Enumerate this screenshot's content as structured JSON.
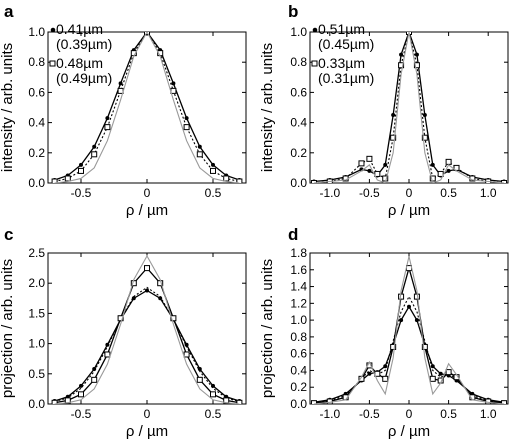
{
  "chart_data": [
    {
      "panel_label": "a",
      "type": "line",
      "xlabel": "ρ / µm",
      "ylabel": "intensity / arb. units",
      "xlim": [
        -0.75,
        0.75
      ],
      "ylim": [
        0.0,
        1.0
      ],
      "xticks": [
        -0.5,
        0,
        0.5
      ],
      "xtick_labels": [
        "-0.5",
        "0",
        "0.5"
      ],
      "yticks": [
        0.0,
        0.2,
        0.4,
        0.6,
        0.8,
        1.0
      ],
      "ytick_labels": [
        "0.0",
        "0.2",
        "0.4",
        "0.6",
        "0.8",
        "1.0"
      ],
      "legend": [
        {
          "marker": "filled-dot",
          "lines": [
            "0.41µm",
            "(0.39µm)"
          ]
        },
        {
          "marker": "open-square",
          "lines": [
            "0.48µm",
            "(0.49µm)"
          ]
        }
      ],
      "series": [
        {
          "marker": "filled-dot",
          "style": "black-solid",
          "x": [
            -0.7,
            -0.6,
            -0.5,
            -0.4,
            -0.3,
            -0.2,
            -0.1,
            0.0,
            0.1,
            0.2,
            0.3,
            0.4,
            0.5,
            0.6,
            0.7
          ],
          "y": [
            0.02,
            0.05,
            0.12,
            0.24,
            0.43,
            0.66,
            0.88,
            1.0,
            0.88,
            0.66,
            0.43,
            0.24,
            0.12,
            0.05,
            0.02
          ]
        },
        {
          "marker": "open-square",
          "style": "black-dotted",
          "x": [
            -0.7,
            -0.6,
            -0.5,
            -0.4,
            -0.3,
            -0.2,
            -0.1,
            0.0,
            0.1,
            0.2,
            0.3,
            0.4,
            0.5,
            0.6,
            0.7
          ],
          "y": [
            0.01,
            0.03,
            0.08,
            0.19,
            0.37,
            0.61,
            0.86,
            1.0,
            0.86,
            0.61,
            0.37,
            0.19,
            0.08,
            0.03,
            0.01
          ]
        },
        {
          "marker": "none",
          "style": "gray-solid",
          "x": [
            -0.7,
            -0.6,
            -0.5,
            -0.4,
            -0.3,
            -0.2,
            -0.1,
            0.0,
            0.1,
            0.2,
            0.3,
            0.4,
            0.5,
            0.6,
            0.7
          ],
          "y": [
            0.0,
            0.01,
            0.03,
            0.1,
            0.28,
            0.55,
            0.84,
            1.0,
            0.84,
            0.55,
            0.28,
            0.1,
            0.03,
            0.01,
            0.0
          ]
        }
      ]
    },
    {
      "panel_label": "b",
      "type": "line",
      "xlabel": "ρ / µm",
      "ylabel": "intensity / arb. units",
      "xlim": [
        -1.25,
        1.25
      ],
      "ylim": [
        0.0,
        1.0
      ],
      "xticks": [
        -1.0,
        -0.5,
        0,
        0.5,
        1.0
      ],
      "xtick_labels": [
        "-1.0",
        "-0.5",
        "0",
        "0.5",
        "1.0"
      ],
      "yticks": [
        0.0,
        0.2,
        0.4,
        0.6,
        0.8,
        1.0
      ],
      "ytick_labels": [
        "0.0",
        "0.2",
        "0.4",
        "0.6",
        "0.8",
        "1.0"
      ],
      "legend": [
        {
          "marker": "filled-dot",
          "lines": [
            "0.51µm",
            "(0.45µm)"
          ]
        },
        {
          "marker": "open-square",
          "lines": [
            "0.33µm",
            "(0.31µm)"
          ]
        }
      ],
      "series": [
        {
          "marker": "filled-dot",
          "style": "black-solid",
          "x": [
            -1.2,
            -1.0,
            -0.8,
            -0.6,
            -0.5,
            -0.4,
            -0.3,
            -0.2,
            -0.1,
            0.0,
            0.1,
            0.2,
            0.3,
            0.4,
            0.5,
            0.6,
            0.8,
            1.0,
            1.2
          ],
          "y": [
            0.01,
            0.02,
            0.04,
            0.09,
            0.08,
            0.05,
            0.12,
            0.45,
            0.85,
            1.0,
            0.85,
            0.45,
            0.12,
            0.05,
            0.08,
            0.09,
            0.04,
            0.02,
            0.01
          ]
        },
        {
          "marker": "open-square",
          "style": "black-dotted",
          "x": [
            -1.2,
            -1.0,
            -0.8,
            -0.6,
            -0.5,
            -0.4,
            -0.3,
            -0.2,
            -0.1,
            0.0,
            0.1,
            0.2,
            0.3,
            0.4,
            0.5,
            0.6,
            0.8,
            1.0,
            1.2
          ],
          "y": [
            0.0,
            0.01,
            0.03,
            0.13,
            0.16,
            0.06,
            0.03,
            0.3,
            0.78,
            1.0,
            0.78,
            0.3,
            0.03,
            0.06,
            0.14,
            0.1,
            0.03,
            0.01,
            0.0
          ]
        },
        {
          "marker": "none",
          "style": "gray-solid",
          "x": [
            -1.2,
            -1.0,
            -0.8,
            -0.6,
            -0.5,
            -0.4,
            -0.3,
            -0.2,
            -0.1,
            0.0,
            0.1,
            0.2,
            0.3,
            0.4,
            0.5,
            0.6,
            0.8,
            1.0,
            1.2
          ],
          "y": [
            0.0,
            0.01,
            0.02,
            0.08,
            0.12,
            0.02,
            0.0,
            0.2,
            0.72,
            1.0,
            0.72,
            0.2,
            0.0,
            0.02,
            0.12,
            0.08,
            0.02,
            0.01,
            0.0
          ]
        }
      ]
    },
    {
      "panel_label": "c",
      "type": "line",
      "xlabel": "ρ / µm",
      "ylabel": "projection / arb. units",
      "xlim": [
        -0.75,
        0.75
      ],
      "ylim": [
        0.0,
        2.5
      ],
      "xticks": [
        -0.5,
        0,
        0.5
      ],
      "xtick_labels": [
        "-0.5",
        "0",
        "0.5"
      ],
      "yticks": [
        0.0,
        0.5,
        1.0,
        1.5,
        2.0,
        2.5
      ],
      "ytick_labels": [
        "0.0",
        "0.5",
        "1.0",
        "1.5",
        "2.0",
        "2.5"
      ],
      "series": [
        {
          "marker": "filled-dot",
          "style": "black-solid",
          "x": [
            -0.7,
            -0.6,
            -0.5,
            -0.4,
            -0.3,
            -0.2,
            -0.1,
            0.0,
            0.1,
            0.2,
            0.3,
            0.4,
            0.5,
            0.6,
            0.7
          ],
          "y": [
            0.05,
            0.12,
            0.3,
            0.58,
            0.98,
            1.4,
            1.75,
            1.88,
            1.75,
            1.4,
            0.98,
            0.58,
            0.3,
            0.12,
            0.05
          ]
        },
        {
          "marker": "none",
          "style": "black-dotted",
          "x": [
            -0.7,
            -0.6,
            -0.5,
            -0.4,
            -0.3,
            -0.2,
            -0.1,
            0.0,
            0.1,
            0.2,
            0.3,
            0.4,
            0.5,
            0.6,
            0.7
          ],
          "y": [
            0.04,
            0.1,
            0.26,
            0.54,
            0.95,
            1.4,
            1.78,
            1.93,
            1.78,
            1.4,
            0.95,
            0.54,
            0.26,
            0.1,
            0.04
          ]
        },
        {
          "marker": "open-square",
          "style": "black-solid",
          "x": [
            -0.7,
            -0.6,
            -0.5,
            -0.4,
            -0.3,
            -0.2,
            -0.1,
            0.0,
            0.1,
            0.2,
            0.3,
            0.4,
            0.5,
            0.6,
            0.7
          ],
          "y": [
            0.02,
            0.06,
            0.16,
            0.4,
            0.82,
            1.42,
            2.0,
            2.25,
            2.0,
            1.42,
            0.82,
            0.4,
            0.16,
            0.06,
            0.02
          ]
        },
        {
          "marker": "none",
          "style": "gray-solid",
          "x": [
            -0.7,
            -0.6,
            -0.5,
            -0.4,
            -0.3,
            -0.2,
            -0.1,
            0.0,
            0.1,
            0.2,
            0.3,
            0.4,
            0.5,
            0.6,
            0.7
          ],
          "y": [
            0.0,
            0.02,
            0.07,
            0.25,
            0.66,
            1.32,
            2.06,
            2.45,
            2.06,
            1.32,
            0.66,
            0.25,
            0.07,
            0.02,
            0.0
          ]
        }
      ]
    },
    {
      "panel_label": "d",
      "type": "line",
      "xlabel": "ρ / µm",
      "ylabel": "projection / arb. units",
      "xlim": [
        -1.25,
        1.25
      ],
      "ylim": [
        0.0,
        1.8
      ],
      "xticks": [
        -1.0,
        -0.5,
        0,
        0.5,
        1.0
      ],
      "xtick_labels": [
        "-1.0",
        "-0.5",
        "0",
        "0.5",
        "1.0"
      ],
      "yticks": [
        0.0,
        0.2,
        0.4,
        0.6,
        0.8,
        1.0,
        1.2,
        1.4,
        1.6,
        1.8
      ],
      "ytick_labels": [
        "0.0",
        "0.2",
        "0.4",
        "0.6",
        "0.8",
        "1.0",
        "1.2",
        "1.4",
        "1.6",
        "1.8"
      ],
      "series": [
        {
          "marker": "filled-dot",
          "style": "black-solid",
          "x": [
            -1.2,
            -1.0,
            -0.8,
            -0.6,
            -0.5,
            -0.4,
            -0.3,
            -0.2,
            -0.1,
            0.0,
            0.1,
            0.2,
            0.3,
            0.4,
            0.5,
            0.6,
            0.8,
            1.0,
            1.2
          ],
          "y": [
            0.02,
            0.05,
            0.12,
            0.28,
            0.36,
            0.38,
            0.45,
            0.7,
            1.0,
            1.16,
            1.0,
            0.7,
            0.45,
            0.36,
            0.34,
            0.28,
            0.12,
            0.05,
            0.02
          ]
        },
        {
          "marker": "none",
          "style": "black-dotted",
          "x": [
            -1.2,
            -1.0,
            -0.8,
            -0.6,
            -0.5,
            -0.4,
            -0.3,
            -0.2,
            -0.1,
            0.0,
            0.1,
            0.2,
            0.3,
            0.4,
            0.5,
            0.6,
            0.8,
            1.0,
            1.2
          ],
          "y": [
            0.01,
            0.04,
            0.1,
            0.3,
            0.4,
            0.35,
            0.4,
            0.75,
            1.1,
            1.28,
            1.1,
            0.75,
            0.4,
            0.32,
            0.36,
            0.3,
            0.1,
            0.04,
            0.01
          ]
        },
        {
          "marker": "open-square",
          "style": "black-solid",
          "x": [
            -1.2,
            -1.0,
            -0.8,
            -0.6,
            -0.5,
            -0.4,
            -0.3,
            -0.2,
            -0.1,
            0.0,
            0.1,
            0.2,
            0.3,
            0.4,
            0.5,
            0.6,
            0.8,
            1.0,
            1.2
          ],
          "y": [
            0.01,
            0.03,
            0.08,
            0.3,
            0.46,
            0.36,
            0.3,
            0.68,
            1.28,
            1.62,
            1.28,
            0.68,
            0.3,
            0.28,
            0.38,
            0.32,
            0.08,
            0.03,
            0.01
          ]
        },
        {
          "marker": "none",
          "style": "gray-solid",
          "x": [
            -1.2,
            -1.0,
            -0.8,
            -0.6,
            -0.5,
            -0.4,
            -0.3,
            -0.2,
            -0.1,
            0.0,
            0.1,
            0.2,
            0.3,
            0.4,
            0.5,
            0.6,
            0.8,
            1.0,
            1.2
          ],
          "y": [
            0.0,
            0.02,
            0.05,
            0.32,
            0.5,
            0.28,
            0.12,
            0.55,
            1.35,
            1.76,
            1.35,
            0.55,
            0.12,
            0.25,
            0.48,
            0.35,
            0.05,
            0.02,
            0.0
          ]
        }
      ]
    }
  ]
}
